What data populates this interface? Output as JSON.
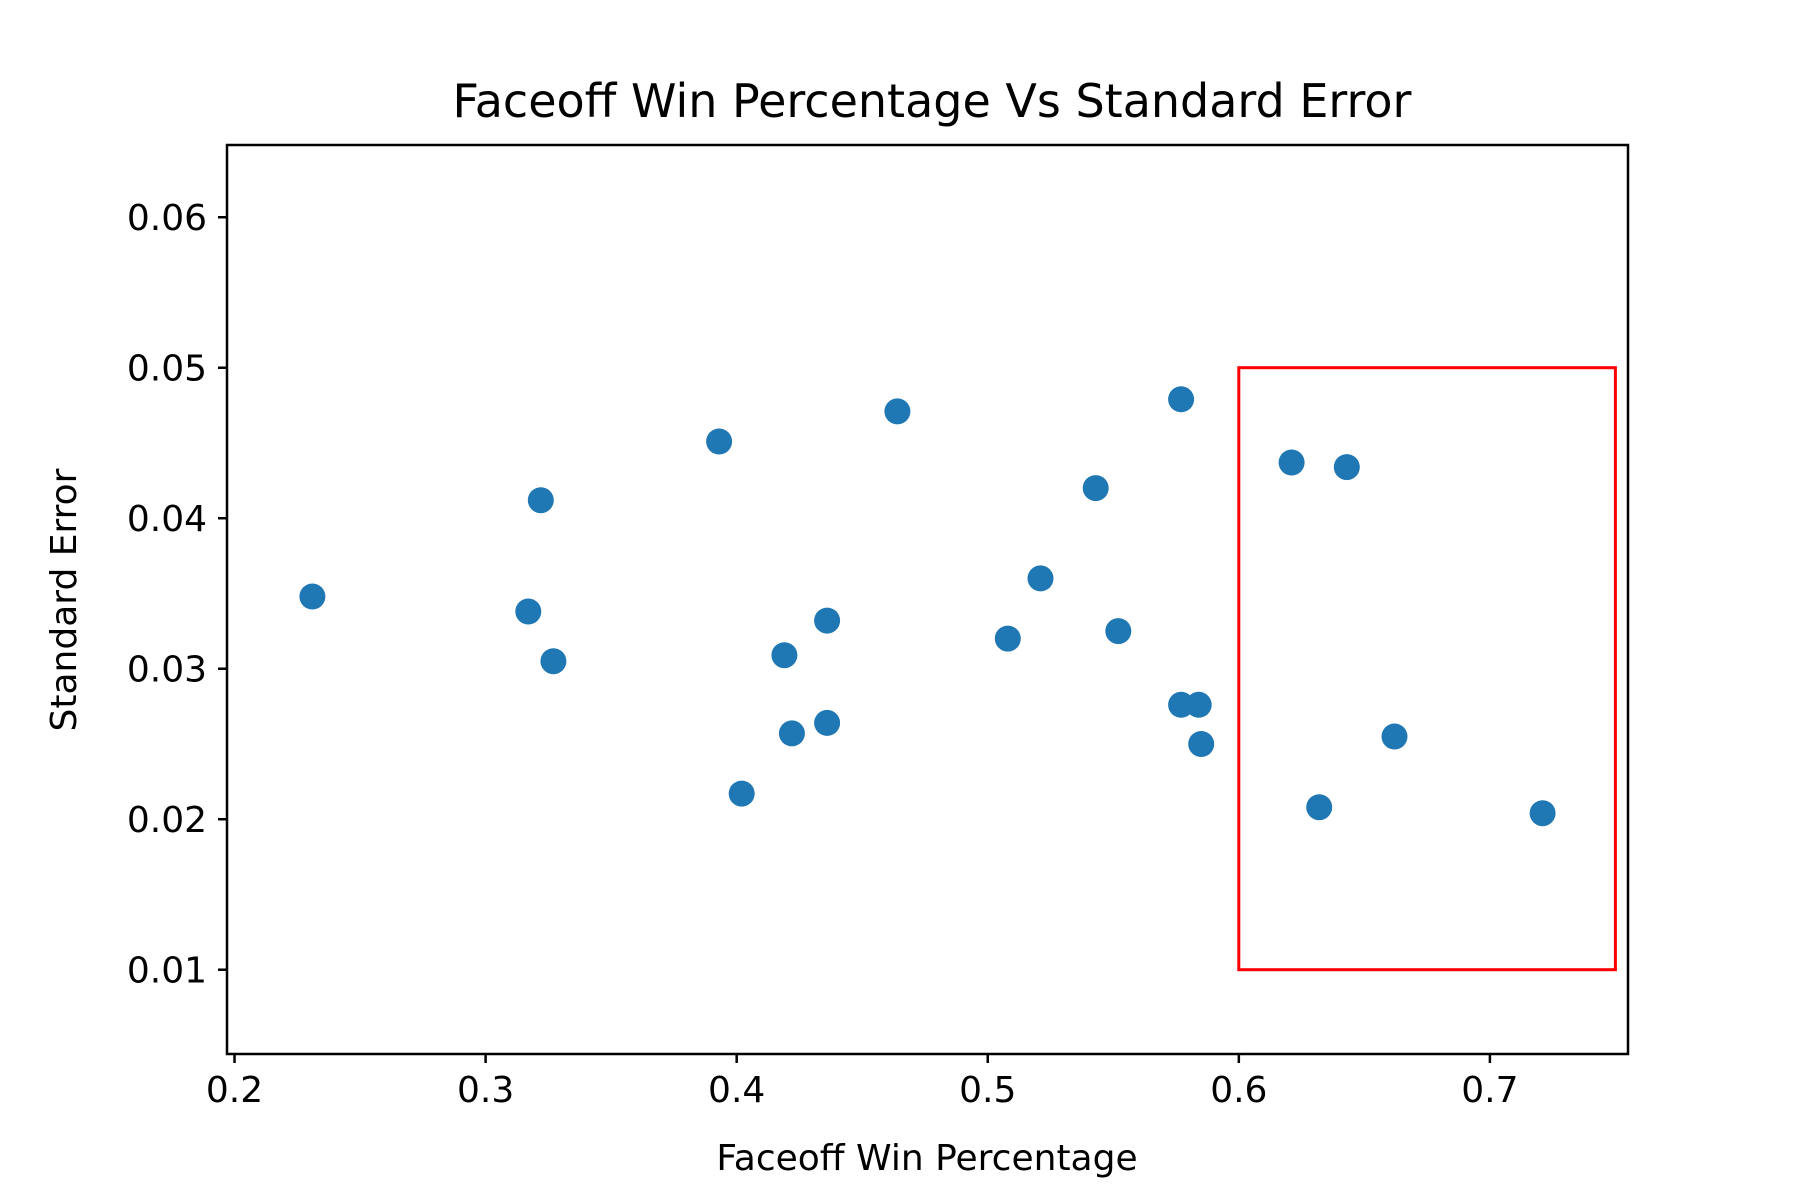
{
  "chart_data": {
    "type": "scatter",
    "title": "Faceoff Win Percentage Vs Standard Error",
    "xlabel": "Faceoff Win Percentage",
    "ylabel": "Standard Error",
    "xlim": [
      0.197,
      0.755
    ],
    "ylim": [
      0.0044,
      0.0648
    ],
    "xticks": [
      0.2,
      0.3,
      0.4,
      0.5,
      0.6,
      0.7
    ],
    "xtick_labels": [
      "0.2",
      "0.3",
      "0.4",
      "0.5",
      "0.6",
      "0.7"
    ],
    "yticks": [
      0.01,
      0.02,
      0.03,
      0.04,
      0.05,
      0.06
    ],
    "ytick_labels": [
      "0.01",
      "0.02",
      "0.03",
      "0.04",
      "0.05",
      "0.06"
    ],
    "grid": false,
    "marker_color": "#1f77b4",
    "points": [
      {
        "x": 0.231,
        "y": 0.0348
      },
      {
        "x": 0.317,
        "y": 0.0338
      },
      {
        "x": 0.322,
        "y": 0.0412
      },
      {
        "x": 0.327,
        "y": 0.0305
      },
      {
        "x": 0.393,
        "y": 0.0451
      },
      {
        "x": 0.402,
        "y": 0.0217
      },
      {
        "x": 0.419,
        "y": 0.0309
      },
      {
        "x": 0.422,
        "y": 0.0257
      },
      {
        "x": 0.436,
        "y": 0.0332
      },
      {
        "x": 0.436,
        "y": 0.0264
      },
      {
        "x": 0.464,
        "y": 0.0471
      },
      {
        "x": 0.508,
        "y": 0.032
      },
      {
        "x": 0.521,
        "y": 0.036
      },
      {
        "x": 0.543,
        "y": 0.042
      },
      {
        "x": 0.552,
        "y": 0.0325
      },
      {
        "x": 0.577,
        "y": 0.0479
      },
      {
        "x": 0.577,
        "y": 0.0276
      },
      {
        "x": 0.584,
        "y": 0.0276
      },
      {
        "x": 0.585,
        "y": 0.025
      },
      {
        "x": 0.621,
        "y": 0.0437
      },
      {
        "x": 0.632,
        "y": 0.0208
      },
      {
        "x": 0.643,
        "y": 0.0434
      },
      {
        "x": 0.662,
        "y": 0.0255
      },
      {
        "x": 0.721,
        "y": 0.0204
      }
    ],
    "highlight_box": {
      "x0": 0.6,
      "x1": 0.75,
      "y0": 0.01,
      "y1": 0.05,
      "color": "#ff0000"
    }
  }
}
